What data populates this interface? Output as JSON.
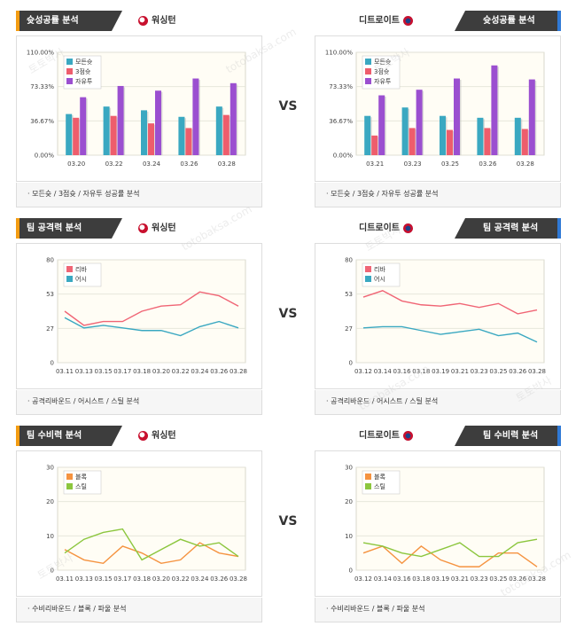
{
  "vs_label": "VS",
  "teams": {
    "left": "워싱턴",
    "right": "디트로이트"
  },
  "colors": {
    "series_1": "#3aa8c1",
    "series_2": "#ee5d6c",
    "series_3": "#9b4fd0",
    "rebound": "#f06575",
    "assist": "#3aa8c1",
    "block": "#f59340",
    "steal": "#8cc63e",
    "grid": "#e3e3d8",
    "plot_bg": "#fffdf5"
  },
  "panels": [
    {
      "title": "슛성공률 분석",
      "footer": "모든슛 / 3점슛 / 자유투 성공률 분석",
      "side": "left"
    },
    {
      "title": "슛성공률 분석",
      "footer": "모든슛 / 3점슛 / 자유투 성공률 분석",
      "side": "right"
    },
    {
      "title": "팀 공격력 분석",
      "footer": "공격리바운드 / 어시스트 / 스틸 분석",
      "side": "left"
    },
    {
      "title": "팀 공격력 분석",
      "footer": "공격리바운드 / 어시스트 / 스틸 분석",
      "side": "right"
    },
    {
      "title": "팀 수비력 분석",
      "footer": "수비리바운드 / 블록 / 파울 분석",
      "side": "left"
    },
    {
      "title": "팀 수비력 분석",
      "footer": "수비리바운드 / 블록 / 파울 분석",
      "side": "right"
    }
  ],
  "chart_data": [
    {
      "type": "bar",
      "team": "워싱턴",
      "categories": [
        "03.20",
        "03.22",
        "03.24",
        "03.26",
        "03.28"
      ],
      "yticks": [
        "0.00%",
        "36.67%",
        "73.33%",
        "110.00%"
      ],
      "ylim": [
        0,
        110
      ],
      "legend_position": "top-left",
      "series": [
        {
          "name": "모든슛",
          "values": [
            44,
            52,
            48,
            41,
            52
          ]
        },
        {
          "name": "3점슛",
          "values": [
            40,
            42,
            34,
            29,
            43
          ]
        },
        {
          "name": "자유투",
          "values": [
            62,
            74,
            69,
            82,
            77
          ]
        }
      ]
    },
    {
      "type": "bar",
      "team": "디트로이트",
      "categories": [
        "03.21",
        "03.23",
        "03.25",
        "03.26",
        "03.28"
      ],
      "yticks": [
        "0.00%",
        "36.67%",
        "73.33%",
        "110.00%"
      ],
      "ylim": [
        0,
        110
      ],
      "legend_position": "top-left",
      "series": [
        {
          "name": "모든슛",
          "values": [
            42,
            51,
            42,
            40,
            40
          ]
        },
        {
          "name": "3점슛",
          "values": [
            21,
            29,
            27,
            29,
            28
          ]
        },
        {
          "name": "자유투",
          "values": [
            64,
            70,
            82,
            96,
            81
          ]
        }
      ]
    },
    {
      "type": "line",
      "team": "워싱턴",
      "categories": [
        "03.11",
        "03.13",
        "03.15",
        "03.17",
        "03.18",
        "03.20",
        "03.22",
        "03.24",
        "03.26",
        "03.28"
      ],
      "yticks": [
        "0",
        "27",
        "53",
        "80"
      ],
      "ylim": [
        0,
        80
      ],
      "legend_position": "top-left",
      "series": [
        {
          "name": "리바",
          "values": [
            40,
            29,
            32,
            32,
            40,
            44,
            45,
            55,
            52,
            44
          ]
        },
        {
          "name": "어시",
          "values": [
            35,
            27,
            29,
            27,
            25,
            25,
            21,
            28,
            32,
            27
          ]
        }
      ]
    },
    {
      "type": "line",
      "team": "디트로이트",
      "categories": [
        "03.12",
        "03.14",
        "03.16",
        "03.18",
        "03.19",
        "03.21",
        "03.23",
        "03.25",
        "03.26",
        "03.28"
      ],
      "yticks": [
        "0",
        "27",
        "53",
        "80"
      ],
      "ylim": [
        0,
        80
      ],
      "legend_position": "top-left",
      "series": [
        {
          "name": "리바",
          "values": [
            51,
            56,
            48,
            45,
            44,
            46,
            43,
            46,
            38,
            41
          ]
        },
        {
          "name": "어시",
          "values": [
            27,
            28,
            28,
            25,
            22,
            24,
            26,
            21,
            23,
            16
          ]
        }
      ]
    },
    {
      "type": "line",
      "team": "워싱턴",
      "categories": [
        "03.11",
        "03.13",
        "03.15",
        "03.17",
        "03.18",
        "03.20",
        "03.22",
        "03.24",
        "03.26",
        "03.28"
      ],
      "yticks": [
        "0",
        "10",
        "20",
        "30"
      ],
      "ylim": [
        0,
        30
      ],
      "legend_position": "top-left",
      "series": [
        {
          "name": "블록",
          "values": [
            6,
            3,
            2,
            7,
            5,
            2,
            3,
            8,
            5,
            4
          ]
        },
        {
          "name": "스틸",
          "values": [
            5,
            9,
            11,
            12,
            3,
            6,
            9,
            7,
            8,
            4
          ]
        }
      ]
    },
    {
      "type": "line",
      "team": "디트로이트",
      "categories": [
        "03.12",
        "03.14",
        "03.16",
        "03.18",
        "03.19",
        "03.21",
        "03.23",
        "03.25",
        "03.26",
        "03.28"
      ],
      "yticks": [
        "0",
        "10",
        "20",
        "30"
      ],
      "ylim": [
        0,
        30
      ],
      "legend_position": "top-left",
      "series": [
        {
          "name": "블록",
          "values": [
            5,
            7,
            2,
            7,
            3,
            1,
            1,
            5,
            5,
            1
          ]
        },
        {
          "name": "스틸",
          "values": [
            8,
            7,
            5,
            4,
            6,
            8,
            4,
            4,
            8,
            9
          ]
        }
      ]
    }
  ],
  "watermark": [
    "토토박사",
    "totobaksa.com"
  ]
}
